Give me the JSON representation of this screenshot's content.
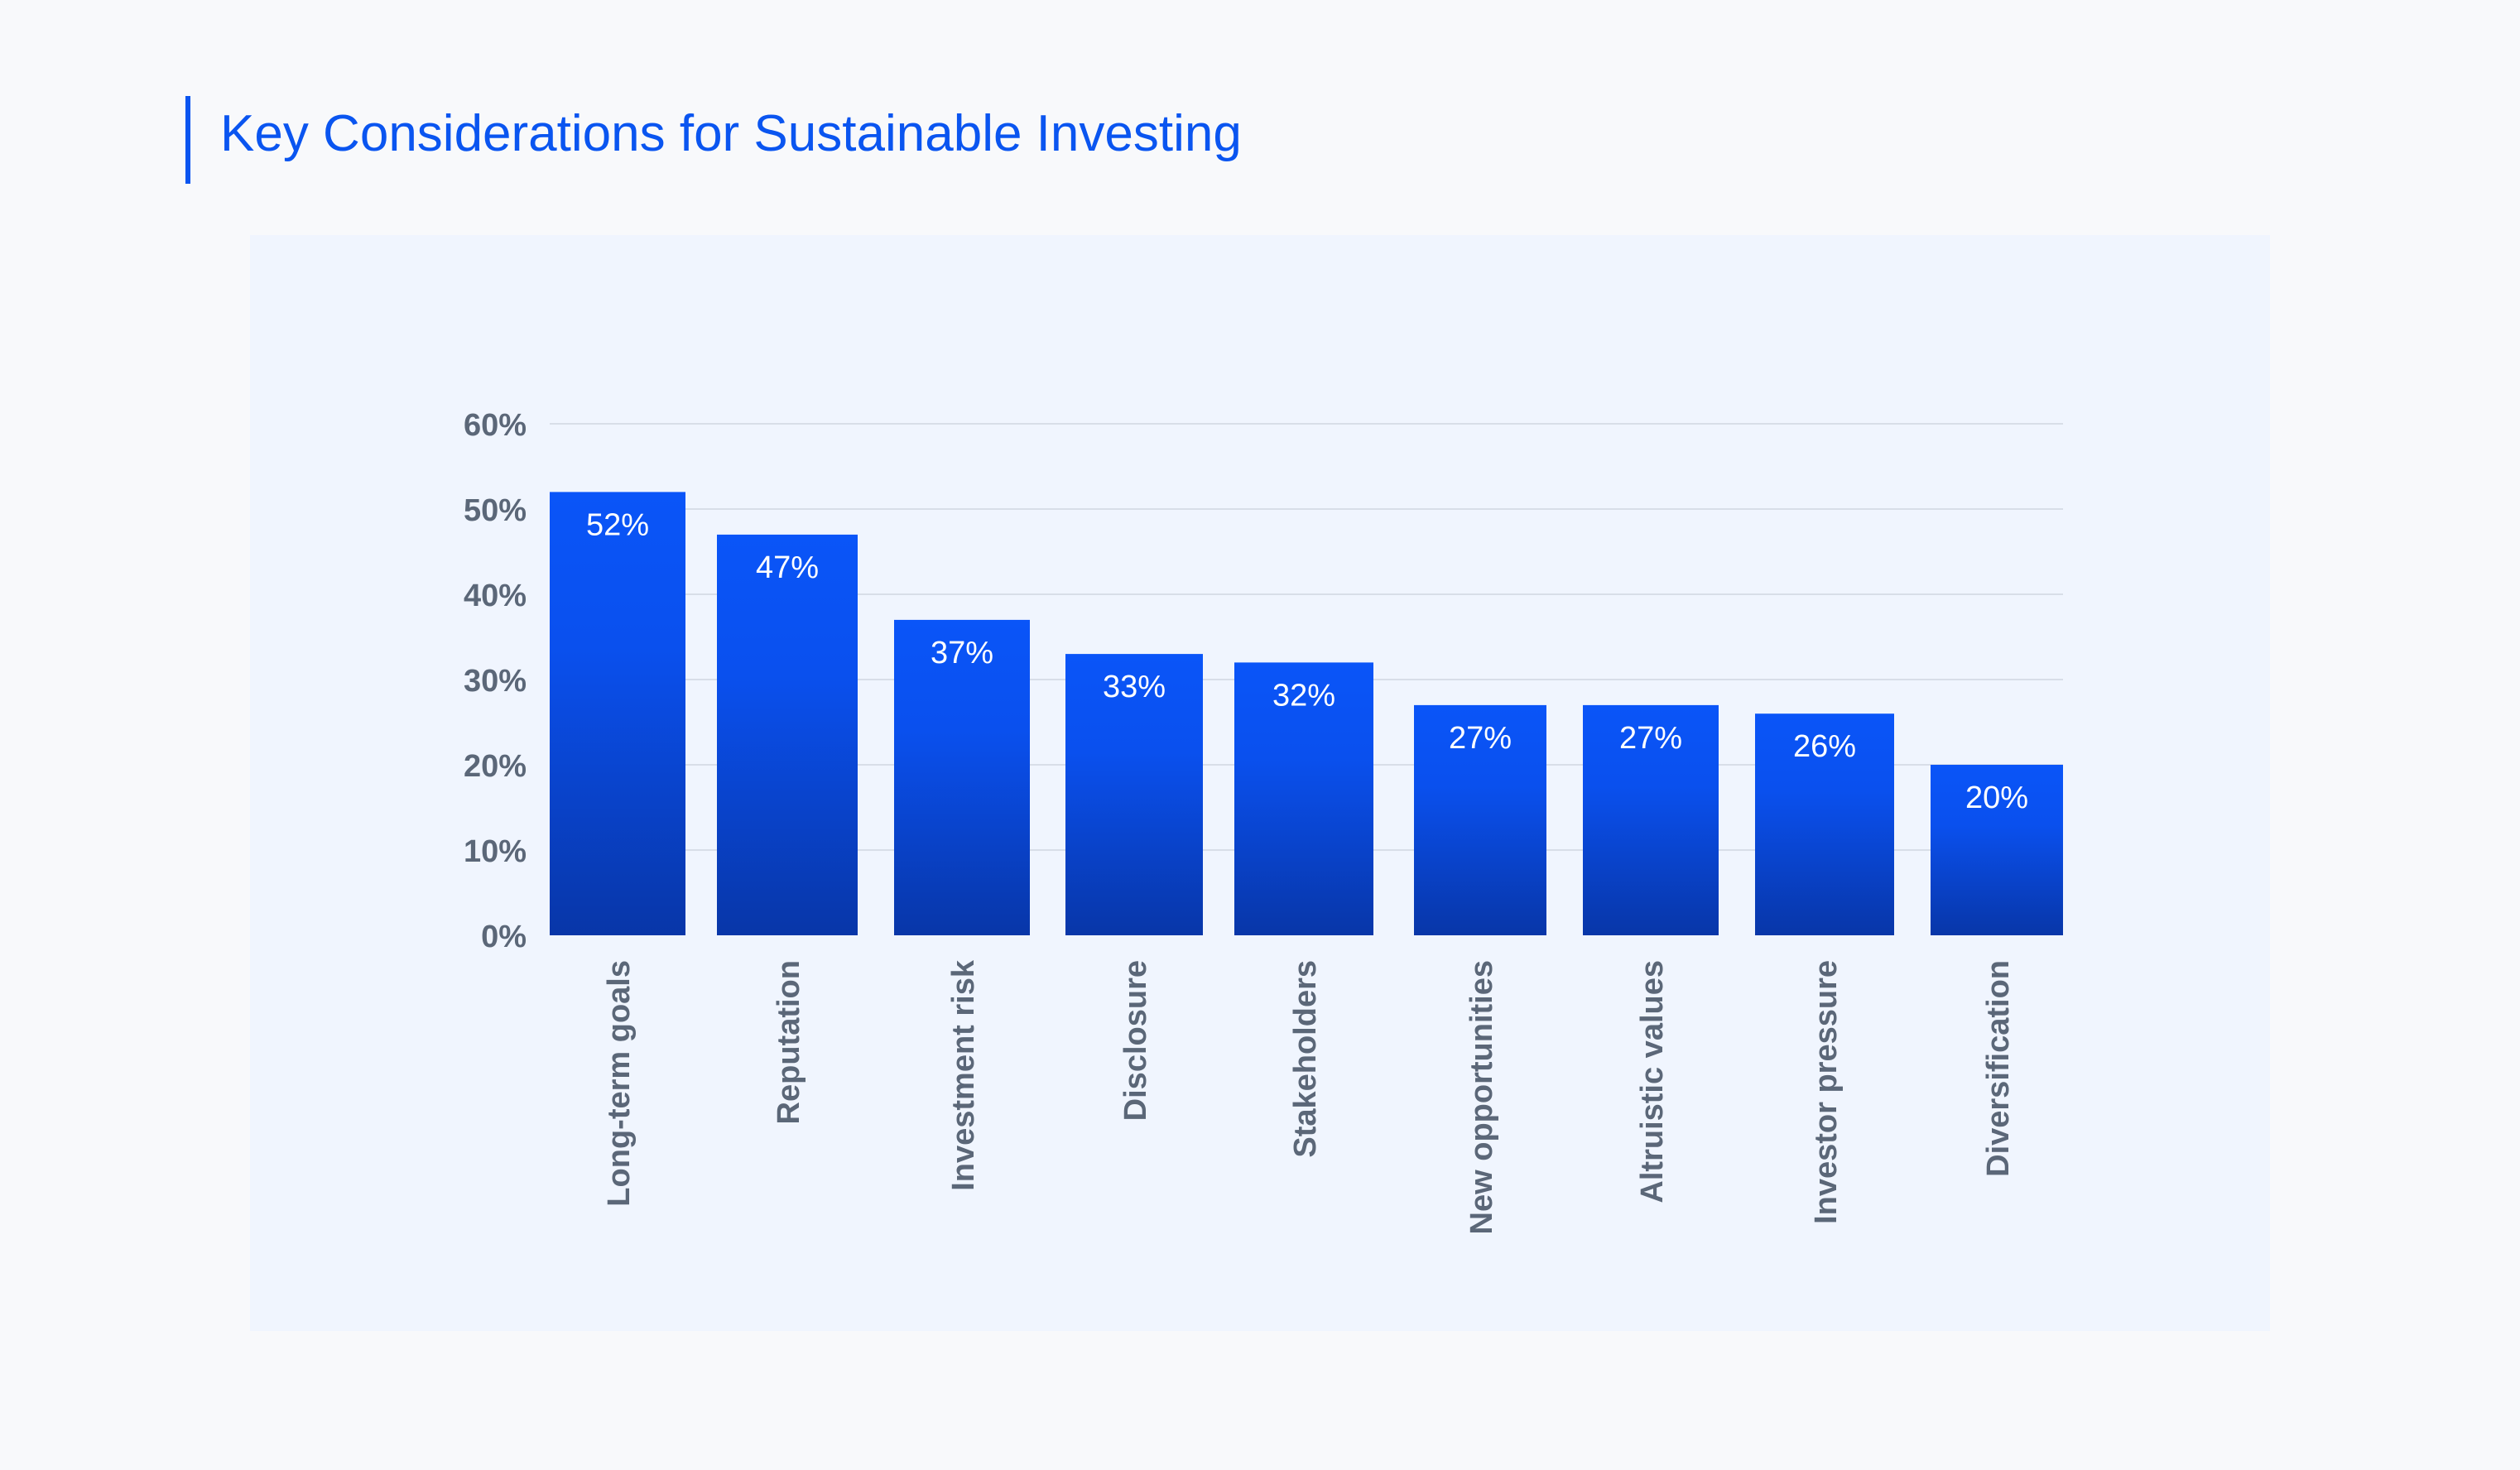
{
  "title": "Key Considerations for Sustainable Investing",
  "colors": {
    "accent": "#0a55f0",
    "bar_top": "#0a55f8",
    "bar_bottom": "#0836a8",
    "panel": "#f0f5fe",
    "tick_text": "#5b6778",
    "grid": "#d8dee8"
  },
  "chart_data": {
    "type": "bar",
    "categories": [
      "Long-term goals",
      "Reputation",
      "Investment risk",
      "Disclosure",
      "Stakeholders",
      "New opportunities",
      "Altruistic values",
      "Investor pressure",
      "Diversification"
    ],
    "values": [
      52,
      47,
      37,
      33,
      32,
      27,
      27,
      26,
      20
    ],
    "data_labels": [
      "52%",
      "47%",
      "37%",
      "33%",
      "32%",
      "27%",
      "27%",
      "26%",
      "20%"
    ],
    "ylim": [
      0,
      60
    ],
    "yticks": [
      0,
      10,
      20,
      30,
      40,
      50,
      60
    ],
    "ytick_labels": [
      "0%",
      "10%",
      "20%",
      "30%",
      "40%",
      "50%",
      "60%"
    ],
    "grid": true,
    "legend": "none"
  }
}
